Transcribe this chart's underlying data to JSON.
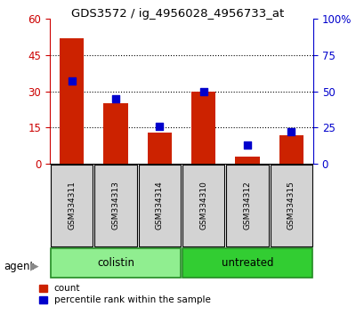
{
  "title": "GDS3572 / ig_4956028_4956733_at",
  "samples": [
    "GSM334311",
    "GSM334313",
    "GSM334314",
    "GSM334310",
    "GSM334312",
    "GSM334315"
  ],
  "count_values": [
    52,
    25,
    13,
    30,
    3,
    12
  ],
  "percentile_values": [
    57,
    45,
    26,
    50,
    13,
    22
  ],
  "colistin_color": "#90EE90",
  "untreated_color": "#32CD32",
  "group_edge_color": "#228B22",
  "left_ylim": [
    0,
    60
  ],
  "right_ylim": [
    0,
    100
  ],
  "left_yticks": [
    0,
    15,
    30,
    45,
    60
  ],
  "right_yticks": [
    0,
    25,
    50,
    75,
    100
  ],
  "right_yticklabels": [
    "0",
    "25",
    "50",
    "75",
    "100%"
  ],
  "left_tick_color": "#CC0000",
  "right_tick_color": "#0000CC",
  "bar_color": "#CC2200",
  "dot_color": "#0000CC",
  "legend_count": "count",
  "legend_percentile": "percentile rank within the sample",
  "sample_box_color": "#D3D3D3",
  "agent_label": "agent"
}
